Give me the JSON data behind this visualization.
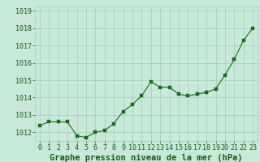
{
  "x": [
    0,
    1,
    2,
    3,
    4,
    5,
    6,
    7,
    8,
    9,
    10,
    11,
    12,
    13,
    14,
    15,
    16,
    17,
    18,
    19,
    20,
    21,
    22,
    23
  ],
  "y": [
    1012.4,
    1012.6,
    1012.6,
    1012.6,
    1011.8,
    1011.7,
    1012.0,
    1012.1,
    1012.5,
    1013.2,
    1013.6,
    1014.1,
    1014.9,
    1014.6,
    1014.6,
    1014.2,
    1014.1,
    1014.2,
    1014.3,
    1014.5,
    1015.3,
    1016.2,
    1017.3,
    1018.0
  ],
  "line_color": "#1a6b1a",
  "marker_color": "#1a6b1a",
  "bg_color": "#c8e8d8",
  "grid_color": "#a8c8b8",
  "title": "Graphe pression niveau de la mer (hPa)",
  "ylim": [
    1011.5,
    1019.25
  ],
  "xlim": [
    -0.5,
    23.5
  ],
  "yticks": [
    1012,
    1013,
    1014,
    1015,
    1016,
    1017,
    1018,
    1019
  ],
  "xticks": [
    0,
    1,
    2,
    3,
    4,
    5,
    6,
    7,
    8,
    9,
    10,
    11,
    12,
    13,
    14,
    15,
    16,
    17,
    18,
    19,
    20,
    21,
    22,
    23
  ],
  "title_fontsize": 7.5,
  "tick_fontsize": 6,
  "title_color": "#1a5c1a",
  "tick_color": "#1a5c1a",
  "ytick_labels": [
    "1012",
    "1013",
    "1014",
    "1015",
    "1016",
    "1017",
    "1018",
    "1019"
  ],
  "xtick_labels": [
    "0",
    "1",
    "2",
    "3",
    "4",
    "5",
    "6",
    "7",
    "8",
    "9",
    "10",
    "11",
    "12",
    "13",
    "14",
    "15",
    "16",
    "17",
    "18",
    "19",
    "20",
    "21",
    "22",
    "23"
  ]
}
